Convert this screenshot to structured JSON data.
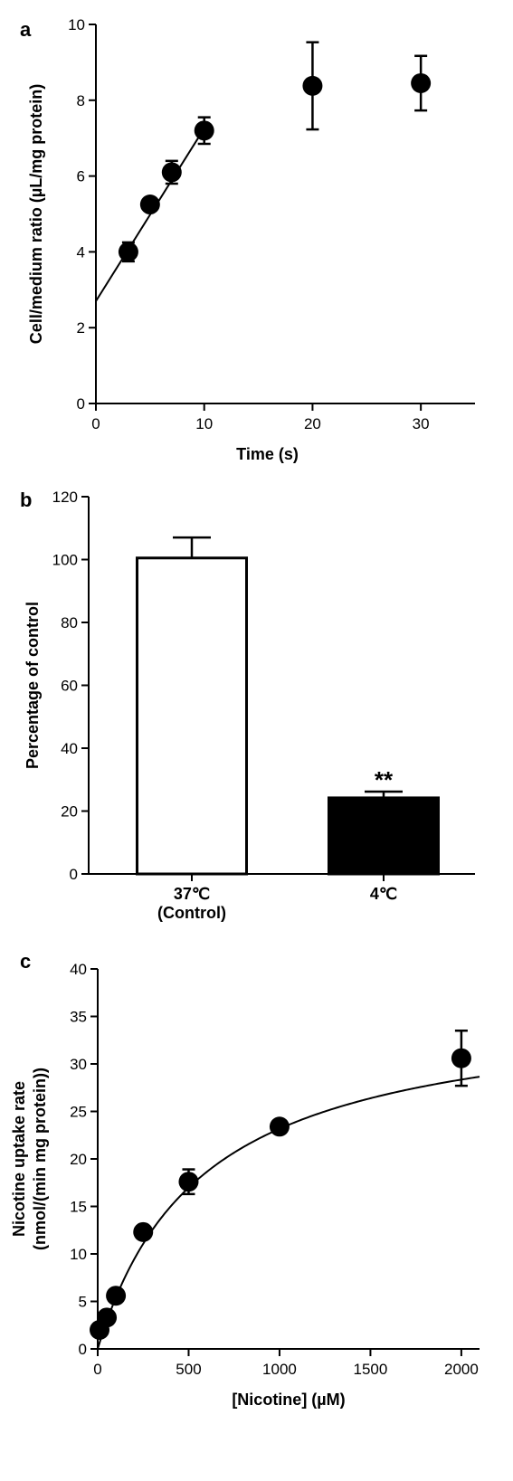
{
  "chart_data": [
    {
      "panel": "a",
      "type": "scatter",
      "xlabel": "Time (s)",
      "ylabel": "Cell/medium ratio (µL/mg protein)",
      "xlim": [
        0,
        35
      ],
      "ylim": [
        0,
        10
      ],
      "xticks": [
        0,
        10,
        20,
        30
      ],
      "yticks": [
        0,
        2,
        4,
        6,
        8,
        10
      ],
      "grid": false,
      "points": [
        {
          "x": 3,
          "y": 4.0,
          "err": 0.25
        },
        {
          "x": 5,
          "y": 5.25,
          "err": 0.15
        },
        {
          "x": 7,
          "y": 6.1,
          "err": 0.3
        },
        {
          "x": 10,
          "y": 7.2,
          "err": 0.35
        },
        {
          "x": 20,
          "y": 8.38,
          "err": 1.15
        },
        {
          "x": 30,
          "y": 8.45,
          "err": 0.72
        }
      ],
      "fit_line": {
        "x": [
          0,
          10.2
        ],
        "y": [
          2.7,
          7.35
        ]
      }
    },
    {
      "panel": "b",
      "type": "bar",
      "ylabel": "Percentage of control",
      "ylim": [
        0,
        120
      ],
      "yticks": [
        0,
        20,
        40,
        60,
        80,
        100,
        120
      ],
      "grid": false,
      "categories": [
        "37℃\n(Control)",
        "4℃"
      ],
      "category_lines": [
        [
          "37℃",
          "(Control)"
        ],
        [
          "4℃"
        ]
      ],
      "values": [
        100.5,
        24.2
      ],
      "errors": [
        6.5,
        2.0
      ],
      "bar_colors": [
        "#ffffff",
        "#000000"
      ],
      "annotations": [
        "",
        "**"
      ]
    },
    {
      "panel": "c",
      "type": "scatter",
      "xlabel": "[Nicotine] (µM)",
      "ylabel": "Nicotine uptake rate",
      "ylabel_line2": "(nmol/(min mg protein))",
      "xlim": [
        0,
        2100
      ],
      "ylim": [
        0,
        40
      ],
      "xticks": [
        0,
        500,
        1000,
        1500,
        2000
      ],
      "yticks": [
        0,
        5,
        10,
        15,
        20,
        25,
        30,
        35,
        40
      ],
      "grid": false,
      "points": [
        {
          "x": 10,
          "y": 2.0,
          "err": 0.0
        },
        {
          "x": 50,
          "y": 3.3,
          "err": 0.0
        },
        {
          "x": 100,
          "y": 5.6,
          "err": 0.0
        },
        {
          "x": 250,
          "y": 12.3,
          "err": 0.0
        },
        {
          "x": 500,
          "y": 17.6,
          "err": 1.3
        },
        {
          "x": 1000,
          "y": 23.4,
          "err": 0.0
        },
        {
          "x": 2000,
          "y": 30.6,
          "err": 2.9
        }
      ],
      "fit_curve": {
        "model": "michaelis-menten",
        "vmax": 36.5,
        "km": 575,
        "x_range": [
          0,
          2100
        ]
      }
    }
  ]
}
